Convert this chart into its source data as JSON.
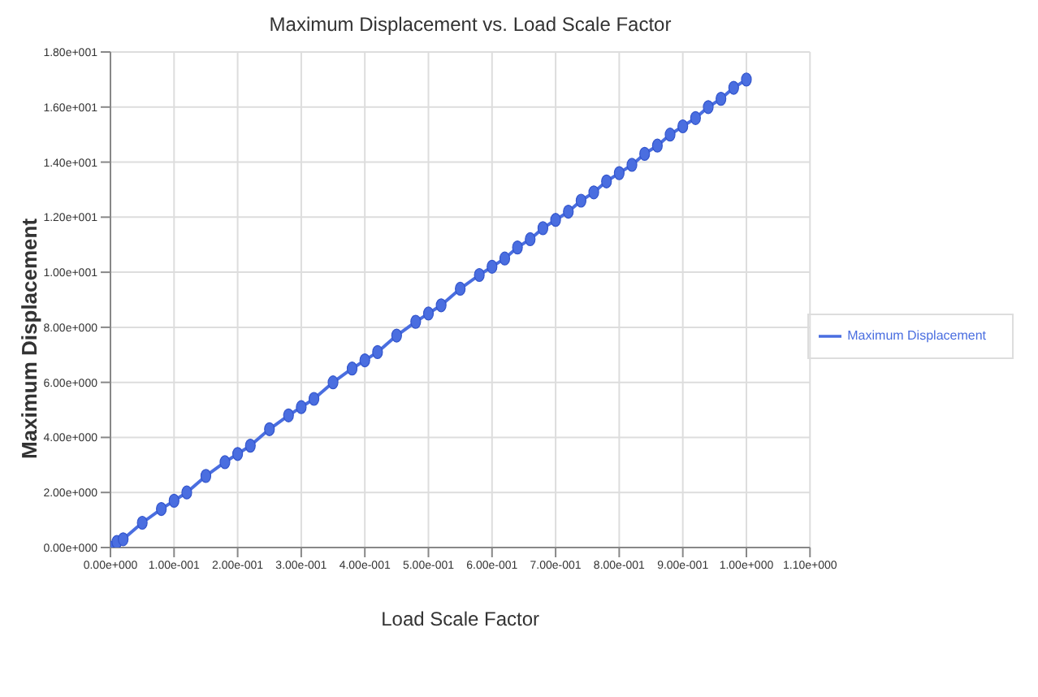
{
  "chart_data": {
    "type": "line",
    "title": "Maximum Displacement vs. Load Scale Factor",
    "xlabel": "Load Scale Factor",
    "ylabel": "Maximum Displacement",
    "x": [
      0,
      0.01,
      0.02,
      0.05,
      0.08,
      0.1,
      0.12,
      0.15,
      0.18,
      0.2,
      0.22,
      0.25,
      0.28,
      0.3,
      0.32,
      0.35,
      0.38,
      0.4,
      0.42,
      0.45,
      0.48,
      0.5,
      0.52,
      0.55,
      0.58,
      0.6,
      0.62,
      0.64,
      0.66,
      0.68,
      0.7,
      0.72,
      0.74,
      0.76,
      0.78,
      0.8,
      0.82,
      0.84,
      0.86,
      0.88,
      0.9,
      0.92,
      0.94,
      0.96,
      0.98,
      1
    ],
    "series": [
      {
        "name": "Maximum Displacement",
        "color": "#4a6ee0",
        "values": [
          0,
          0.2,
          0.3,
          0.9,
          1.4,
          1.7,
          2.0,
          2.6,
          3.1,
          3.4,
          3.7,
          4.3,
          4.8,
          5.1,
          5.4,
          6.0,
          6.5,
          6.8,
          7.1,
          7.7,
          8.2,
          8.5,
          8.8,
          9.4,
          9.9,
          10.2,
          10.5,
          10.9,
          11.2,
          11.6,
          11.9,
          12.2,
          12.6,
          12.9,
          13.3,
          13.6,
          13.9,
          14.3,
          14.6,
          15.0,
          15.3,
          15.6,
          16.0,
          16.3,
          16.7,
          17.0
        ]
      }
    ],
    "xlim": [
      0,
      1.1
    ],
    "xticks": [
      {
        "value": 0,
        "label": "0.00e+000"
      },
      {
        "value": 0.1,
        "label": "1.00e-001"
      },
      {
        "value": 0.2,
        "label": "2.00e-001"
      },
      {
        "value": 0.3,
        "label": "3.00e-001"
      },
      {
        "value": 0.4,
        "label": "4.00e-001"
      },
      {
        "value": 0.5,
        "label": "5.00e-001"
      },
      {
        "value": 0.6,
        "label": "6.00e-001"
      },
      {
        "value": 0.7,
        "label": "7.00e-001"
      },
      {
        "value": 0.8,
        "label": "8.00e-001"
      },
      {
        "value": 0.9,
        "label": "9.00e-001"
      },
      {
        "value": 1,
        "label": "1.00e+000"
      },
      {
        "value": 1.1,
        "label": "1.10e+000"
      }
    ],
    "ylim": [
      0,
      18
    ],
    "yticks": [
      {
        "value": 0,
        "label": "0.00e+000"
      },
      {
        "value": 2,
        "label": "2.00e+000"
      },
      {
        "value": 4,
        "label": "4.00e+000"
      },
      {
        "value": 6,
        "label": "6.00e+000"
      },
      {
        "value": 8,
        "label": "8.00e+000"
      },
      {
        "value": 10,
        "label": "1.00e+001"
      },
      {
        "value": 12,
        "label": "1.20e+001"
      },
      {
        "value": 14,
        "label": "1.40e+001"
      },
      {
        "value": 16,
        "label": "1.60e+001"
      },
      {
        "value": 18,
        "label": "1.80e+001"
      }
    ],
    "grid": true,
    "legend": "right",
    "marker": "circle",
    "line_style": "solid"
  }
}
